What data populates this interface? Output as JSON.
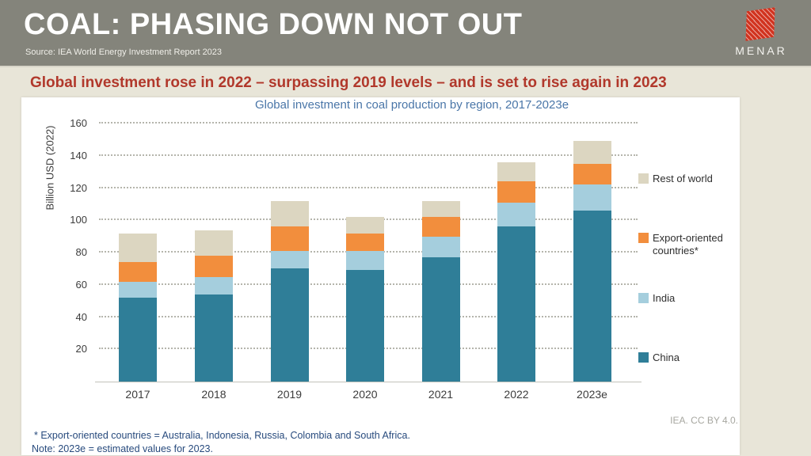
{
  "banner": {
    "title": "COAL: PHASING DOWN NOT OUT",
    "source": "Source: IEA World Energy Investment Report 2023",
    "logo_text": "MENAR",
    "logo_color": "#d1331f",
    "background": "#84847b"
  },
  "headline": "Global investment rose in 2022 – surpassing 2019 levels – and is set to rise again in 2023",
  "headline_color": "#b1382b",
  "chart_data": {
    "type": "bar",
    "stacked": true,
    "title": "Global investment in coal production by region, 2017-2023e",
    "ylabel": "Billion USD (2022)",
    "xlabel": "",
    "categories": [
      "2017",
      "2018",
      "2019",
      "2020",
      "2021",
      "2022",
      "2023e"
    ],
    "series": [
      {
        "name": "China",
        "color": "#2f7e98",
        "values": [
          52,
          54,
          70,
          69,
          77,
          96,
          106
        ]
      },
      {
        "name": "India",
        "color": "#a5cedd",
        "values": [
          10,
          11,
          11,
          12,
          13,
          15,
          16
        ]
      },
      {
        "name": "Export-oriented countries*",
        "color": "#f28e3d",
        "values": [
          12,
          13,
          15,
          11,
          12,
          13,
          13
        ]
      },
      {
        "name": "Rest of world",
        "color": "#dcd6c1",
        "values": [
          18,
          16,
          16,
          10,
          10,
          12,
          14
        ]
      }
    ],
    "totals": [
      92,
      94,
      112,
      102,
      112,
      136,
      149
    ],
    "ylim": [
      0,
      160
    ],
    "yticks": [
      20,
      40,
      60,
      80,
      100,
      120,
      140,
      160
    ],
    "grid": "horizontal dotted",
    "legend_position": "right",
    "legend_order": [
      "Rest of world",
      "Export-oriented countries*",
      "India",
      "China"
    ]
  },
  "footnotes": {
    "line1": "* Export-oriented countries = Australia, Indonesia, Russia, Colombia and South Africa.",
    "line2": "Note:  2023e = estimated values for 2023."
  },
  "credit": "IEA. CC BY 4.0."
}
